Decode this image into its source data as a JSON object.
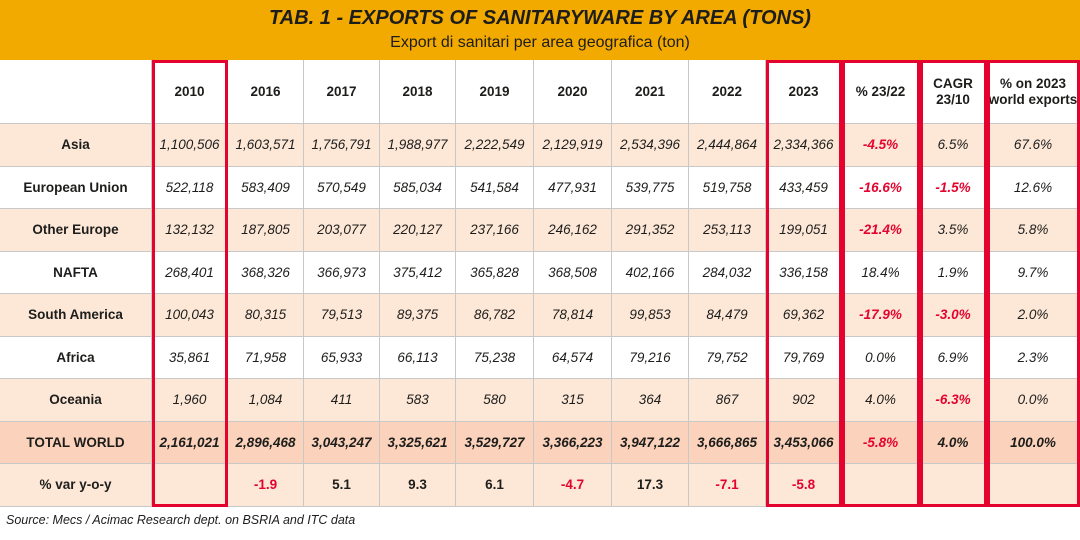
{
  "title": "TAB. 1 - EXPORTS OF SANITARYWARE BY AREA (TONS)",
  "subtitle": "Export di sanitari per area geografica (ton)",
  "source": "Source: Mecs / Acimac Research dept. on BSRIA and ITC data",
  "colors": {
    "title_bar": "#f2a900",
    "highlight_frame": "#e4032e",
    "negative": "#e4032e",
    "row_tint": "#fde8d8",
    "total_row": "#fbd2bb"
  },
  "chart_data": {
    "type": "table",
    "title": "TAB. 1 - EXPORTS OF SANITARYWARE BY AREA (TONS)",
    "subtitle": "Export di sanitari per area geografica (ton)",
    "columns": [
      "",
      "2010",
      "2016",
      "2017",
      "2018",
      "2019",
      "2020",
      "2021",
      "2022",
      "2023",
      "% 23/22",
      "CAGR 23/10",
      "% on 2023 world exports"
    ],
    "rows": [
      {
        "label": "Asia",
        "values": [
          "1,100,506",
          "1,603,571",
          "1,756,791",
          "1,988,977",
          "2,222,549",
          "2,129,919",
          "2,534,396",
          "2,444,864",
          "2,334,366",
          "-4.5%",
          "6.5%",
          "67.6%"
        ]
      },
      {
        "label": "European Union",
        "values": [
          "522,118",
          "583,409",
          "570,549",
          "585,034",
          "541,584",
          "477,931",
          "539,775",
          "519,758",
          "433,459",
          "-16.6%",
          "-1.5%",
          "12.6%"
        ]
      },
      {
        "label": "Other Europe",
        "values": [
          "132,132",
          "187,805",
          "203,077",
          "220,127",
          "237,166",
          "246,162",
          "291,352",
          "253,113",
          "199,051",
          "-21.4%",
          "3.5%",
          "5.8%"
        ]
      },
      {
        "label": "NAFTA",
        "values": [
          "268,401",
          "368,326",
          "366,973",
          "375,412",
          "365,828",
          "368,508",
          "402,166",
          "284,032",
          "336,158",
          "18.4%",
          "1.9%",
          "9.7%"
        ]
      },
      {
        "label": "South America",
        "values": [
          "100,043",
          "80,315",
          "79,513",
          "89,375",
          "86,782",
          "78,814",
          "99,853",
          "84,479",
          "69,362",
          "-17.9%",
          "-3.0%",
          "2.0%"
        ]
      },
      {
        "label": "Africa",
        "values": [
          "35,861",
          "71,958",
          "65,933",
          "66,113",
          "75,238",
          "64,574",
          "79,216",
          "79,752",
          "79,769",
          "0.0%",
          "6.9%",
          "2.3%"
        ]
      },
      {
        "label": "Oceania",
        "values": [
          "1,960",
          "1,084",
          "411",
          "583",
          "580",
          "315",
          "364",
          "867",
          "902",
          "4.0%",
          "-6.3%",
          "0.0%"
        ]
      },
      {
        "label": "TOTAL WORLD",
        "values": [
          "2,161,021",
          "2,896,468",
          "3,043,247",
          "3,325,621",
          "3,529,727",
          "3,366,223",
          "3,947,122",
          "3,666,865",
          "3,453,066",
          "-5.8%",
          "4.0%",
          "100.0%"
        ]
      },
      {
        "label": "% var y-o-y",
        "values": [
          "",
          "-1.9",
          "5.1",
          "9.3",
          "6.1",
          "-4.7",
          "17.3",
          "-7.1",
          "-5.8",
          "",
          "",
          ""
        ]
      }
    ]
  }
}
